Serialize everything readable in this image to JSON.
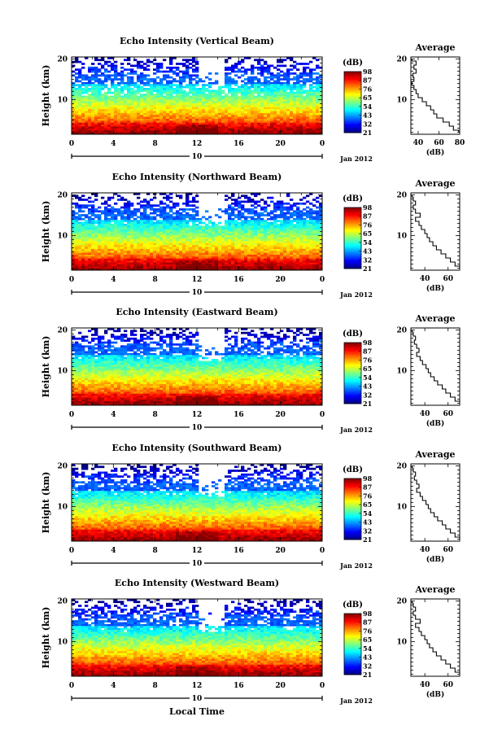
{
  "figure": {
    "xlabel": "Local Time",
    "date_label": "Jan 2012",
    "day_label": "10",
    "colorbar_unit": "(dB)",
    "average_title": "Average",
    "average_xlabel": "(dB)",
    "ylabel": "Height (km)"
  },
  "chart_data": [
    {
      "type": "heatmap",
      "title": "Echo Intensity (Vertical Beam)",
      "ylabel": "Height (km)",
      "xlabel": "Local Time",
      "xticks": [
        "0",
        "4",
        "8",
        "12",
        "16",
        "20",
        "0"
      ],
      "xlim": [
        0,
        24
      ],
      "yticks": [
        "10",
        "20"
      ],
      "ylim": [
        1.5,
        20.5
      ],
      "colorbar": {
        "unit": "(dB)",
        "ticks": [
          "21",
          "32",
          "43",
          "54",
          "65",
          "76",
          "87",
          "98"
        ]
      },
      "average_profile": {
        "title": "Average",
        "xlabel": "(dB)",
        "xticks": [
          "40",
          "60",
          "80"
        ],
        "xlim": [
          33,
          80
        ],
        "height": [
          2,
          3,
          4,
          5,
          6,
          7,
          8,
          9,
          10,
          11,
          12,
          13,
          14,
          15,
          16,
          17,
          18,
          19,
          20
        ],
        "db": [
          79,
          74,
          70,
          64,
          58,
          55,
          52,
          48,
          44,
          40,
          38,
          36,
          34,
          36,
          35,
          38,
          36,
          38,
          34
        ]
      }
    },
    {
      "type": "heatmap",
      "title": "Echo Intensity (Northward Beam)",
      "ylabel": "Height (km)",
      "xlabel": "Local Time",
      "xticks": [
        "0",
        "4",
        "8",
        "12",
        "16",
        "20",
        "0"
      ],
      "xlim": [
        0,
        24
      ],
      "yticks": [
        "10",
        "20"
      ],
      "ylim": [
        1.5,
        20.5
      ],
      "colorbar": {
        "unit": "(dB)",
        "ticks": [
          "21",
          "32",
          "43",
          "54",
          "65",
          "76",
          "87",
          "98"
        ]
      },
      "average_profile": {
        "title": "Average",
        "xlabel": "(dB)",
        "xticks": [
          "40",
          "60"
        ],
        "xlim": [
          28,
          70
        ],
        "height": [
          2,
          3,
          4,
          5,
          6,
          7,
          8,
          9,
          10,
          11,
          12,
          13,
          14,
          15,
          16,
          17,
          18,
          19,
          20
        ],
        "db": [
          70,
          66,
          62,
          58,
          54,
          50,
          47,
          44,
          42,
          40,
          37,
          35,
          32,
          36,
          32,
          30,
          32,
          30,
          29
        ]
      }
    },
    {
      "type": "heatmap",
      "title": "Echo Intensity (Eastward Beam)",
      "ylabel": "Height (km)",
      "xlabel": "Local Time",
      "xticks": [
        "0",
        "4",
        "8",
        "12",
        "16",
        "20",
        "0"
      ],
      "xlim": [
        0,
        24
      ],
      "yticks": [
        "10",
        "20"
      ],
      "ylim": [
        1.5,
        20.5
      ],
      "colorbar": {
        "unit": "(dB)",
        "ticks": [
          "21",
          "32",
          "43",
          "54",
          "65",
          "76",
          "87",
          "98"
        ]
      },
      "average_profile": {
        "title": "Average",
        "xlabel": "(dB)",
        "xticks": [
          "40",
          "60"
        ],
        "xlim": [
          28,
          70
        ],
        "height": [
          2,
          3,
          4,
          5,
          6,
          7,
          8,
          9,
          10,
          11,
          12,
          13,
          14,
          15,
          16,
          17,
          18,
          19,
          20
        ],
        "db": [
          70,
          66,
          62,
          58,
          55,
          51,
          48,
          45,
          43,
          41,
          38,
          36,
          33,
          35,
          33,
          31,
          32,
          30,
          29
        ]
      }
    },
    {
      "type": "heatmap",
      "title": "Echo Intensity (Southward Beam)",
      "ylabel": "Height (km)",
      "xlabel": "Local Time",
      "xticks": [
        "0",
        "4",
        "8",
        "12",
        "16",
        "20",
        "0"
      ],
      "xlim": [
        0,
        24
      ],
      "yticks": [
        "10",
        "20"
      ],
      "ylim": [
        1.5,
        20.5
      ],
      "colorbar": {
        "unit": "(dB)",
        "ticks": [
          "21",
          "32",
          "43",
          "54",
          "65",
          "76",
          "87",
          "98"
        ]
      },
      "average_profile": {
        "title": "Average",
        "xlabel": "(dB)",
        "xticks": [
          "40",
          "60"
        ],
        "xlim": [
          28,
          70
        ],
        "height": [
          2,
          3,
          4,
          5,
          6,
          7,
          8,
          9,
          10,
          11,
          12,
          13,
          14,
          15,
          16,
          17,
          18,
          19,
          20
        ],
        "db": [
          70,
          66,
          62,
          58,
          55,
          51,
          48,
          45,
          43,
          41,
          38,
          36,
          33,
          35,
          33,
          31,
          32,
          30,
          29
        ]
      }
    },
    {
      "type": "heatmap",
      "title": "Echo Intensity (Westward Beam)",
      "ylabel": "Height (km)",
      "xlabel": "Local Time",
      "xticks": [
        "0",
        "4",
        "8",
        "12",
        "16",
        "20",
        "0"
      ],
      "xlim": [
        0,
        24
      ],
      "yticks": [
        "10",
        "20"
      ],
      "ylim": [
        1.5,
        20.5
      ],
      "colorbar": {
        "unit": "(dB)",
        "ticks": [
          "21",
          "32",
          "43",
          "54",
          "65",
          "76",
          "87",
          "98"
        ]
      },
      "average_profile": {
        "title": "Average",
        "xlabel": "(dB)",
        "xticks": [
          "40",
          "60"
        ],
        "xlim": [
          28,
          70
        ],
        "height": [
          2,
          3,
          4,
          5,
          6,
          7,
          8,
          9,
          10,
          11,
          12,
          13,
          14,
          15,
          16,
          17,
          18,
          19,
          20
        ],
        "db": [
          70,
          66,
          62,
          58,
          54,
          50,
          47,
          44,
          42,
          40,
          37,
          35,
          32,
          36,
          32,
          30,
          32,
          30,
          29
        ]
      }
    }
  ]
}
